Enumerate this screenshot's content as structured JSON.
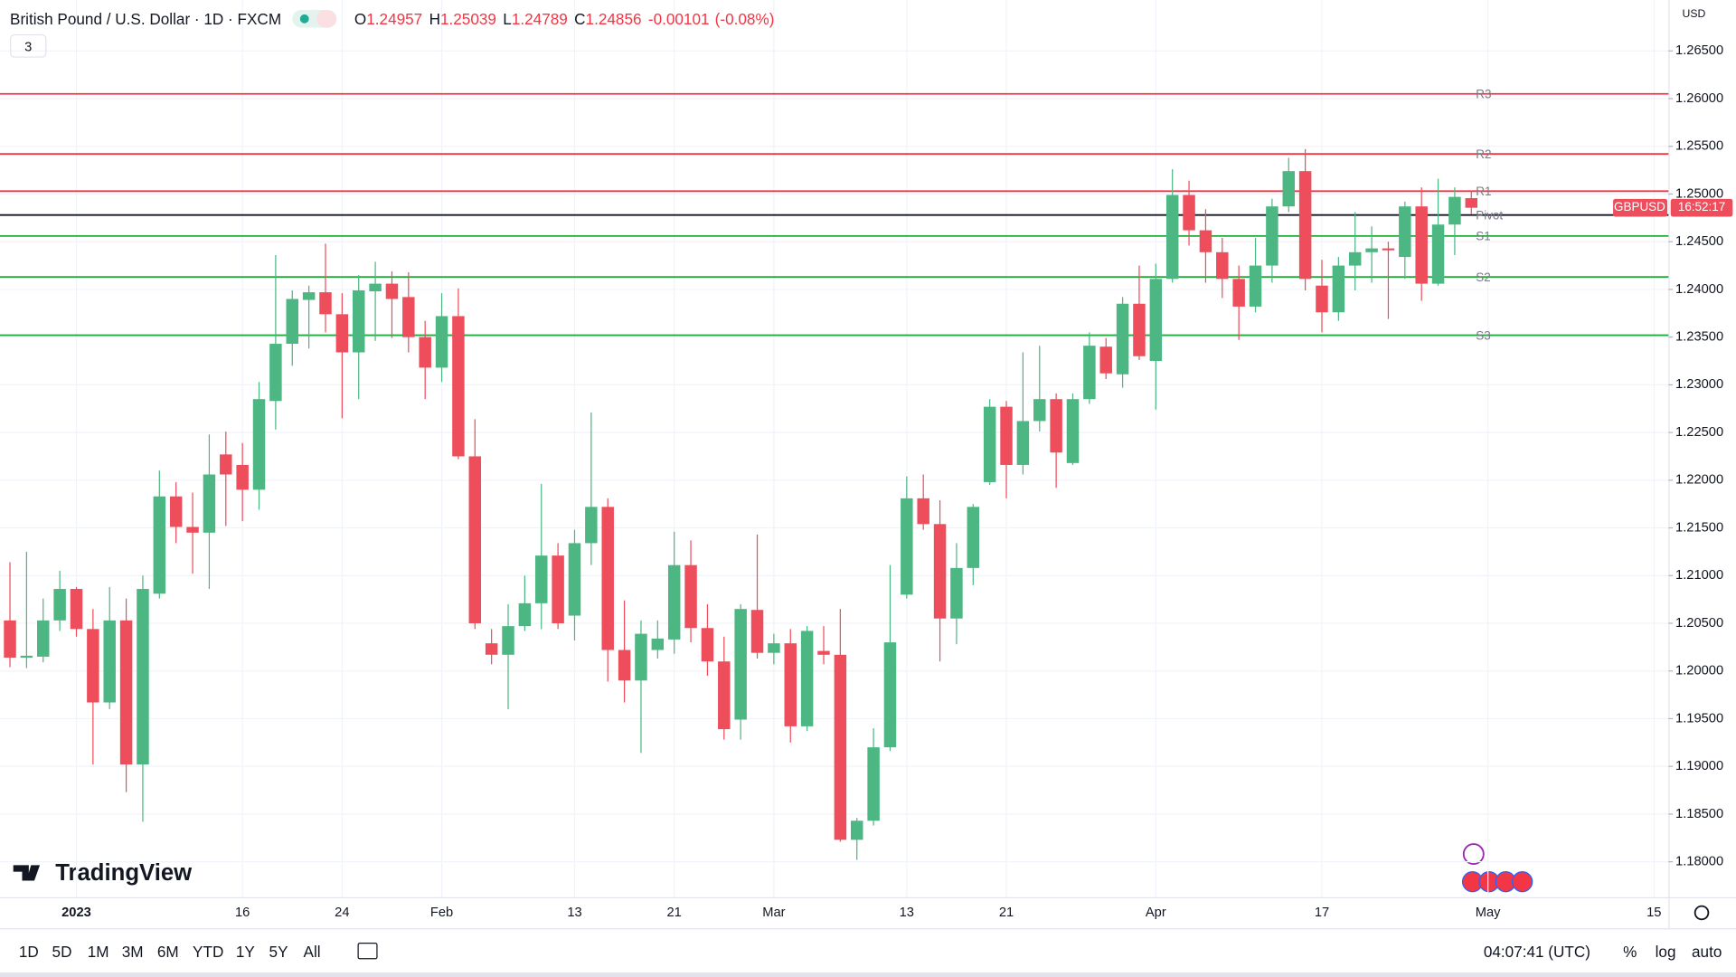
{
  "header": {
    "title": "British Pound / U.S. Dollar · 1D · FXCM",
    "indicator_count": 3,
    "ohlc_labels": [
      "O",
      "H",
      "L",
      "C"
    ],
    "change": "-0.00101",
    "change_pct": "(-0.08%)"
  },
  "toolbar": {
    "ranges": [
      "1D",
      "5D",
      "1M",
      "3M",
      "6M",
      "YTD",
      "1Y",
      "5Y",
      "All"
    ],
    "clock": "04:07:41 (UTC)",
    "options": [
      "%",
      "log",
      "auto"
    ]
  },
  "logo": "TradingView",
  "chart_data": {
    "type": "candlestick",
    "currency": "USD",
    "symbol": "GBPUSD",
    "countdown": "16:52:17",
    "up_color": "#4cb782",
    "down_color": "#ee4d5c",
    "open": [
      1.2053,
      1.2014,
      1.2015,
      1.2053,
      1.2086,
      1.2044,
      1.1967,
      1.2053,
      1.1902,
      1.2081,
      1.2183,
      1.2151,
      1.2145,
      1.2227,
      1.2216,
      1.219,
      1.2283,
      1.2343,
      1.2389,
      1.2397,
      1.2374,
      1.2334,
      1.2398,
      1.2406,
      1.2392,
      1.235,
      1.2318,
      1.2372,
      1.2225,
      1.2029,
      1.2017,
      1.2047,
      1.2071,
      1.2121,
      1.2058,
      1.2134,
      1.2172,
      1.2022,
      1.199,
      1.2022,
      1.2033,
      1.2111,
      1.2045,
      1.201,
      1.1949,
      1.2064,
      1.2019,
      1.2029,
      1.1942,
      1.2021,
      1.2017,
      1.1823,
      1.1843,
      1.192,
      1.208,
      1.2181,
      1.2154,
      1.2055,
      1.2108,
      1.2198,
      1.2277,
      1.2216,
      1.2262,
      1.2285,
      1.2218,
      1.2285,
      1.234,
      1.2311,
      1.2385,
      1.2325,
      1.2411,
      1.2499,
      1.2462,
      1.2439,
      1.2411,
      1.2382,
      1.2425,
      1.2487,
      1.2524,
      1.2404,
      1.2376,
      1.2425,
      1.2439,
      1.2443,
      1.2434,
      1.2487,
      1.2406,
      1.2468,
      1.24957
    ],
    "high": [
      1.2114,
      1.2125,
      1.2076,
      1.2105,
      1.2088,
      1.2065,
      1.2088,
      1.2076,
      1.21,
      1.221,
      1.2198,
      1.2187,
      1.2248,
      1.2251,
      1.2239,
      1.2303,
      1.2436,
      1.2399,
      1.2404,
      1.2448,
      1.2396,
      1.2415,
      1.2429,
      1.2419,
      1.2418,
      1.2367,
      1.2396,
      1.2401,
      1.2264,
      1.2044,
      1.207,
      1.21,
      1.2196,
      1.2134,
      1.2148,
      1.2271,
      1.2181,
      1.2074,
      1.2053,
      1.2053,
      1.2146,
      1.2137,
      1.207,
      1.2036,
      1.207,
      1.2143,
      1.2039,
      1.2044,
      1.2047,
      1.2047,
      1.2065,
      1.1846,
      1.194,
      1.2111,
      1.2204,
      1.2206,
      1.2179,
      1.2134,
      1.2175,
      1.2285,
      1.2283,
      1.2334,
      1.2341,
      1.2291,
      1.2291,
      1.2355,
      1.2349,
      1.2392,
      1.2425,
      1.2427,
      1.2526,
      1.2514,
      1.2484,
      1.2454,
      1.2425,
      1.2454,
      1.2495,
      1.2538,
      1.2547,
      1.2431,
      1.2434,
      1.2481,
      1.2466,
      1.245,
      1.2492,
      1.2507,
      1.2516,
      1.2507,
      1.25039
    ],
    "low": [
      1.2004,
      1.2003,
      1.2009,
      1.2042,
      1.2036,
      1.1902,
      1.196,
      1.1873,
      1.1842,
      1.2076,
      1.2134,
      1.2102,
      1.2086,
      1.2152,
      1.2157,
      1.2169,
      1.2253,
      1.232,
      1.2338,
      1.2355,
      1.2265,
      1.2285,
      1.2346,
      1.2349,
      1.2334,
      1.2285,
      1.2303,
      1.2222,
      1.2044,
      1.2007,
      1.196,
      1.2042,
      1.2044,
      1.2044,
      1.2032,
      1.2111,
      1.1989,
      1.1967,
      1.1914,
      1.2013,
      1.2018,
      1.203,
      1.1995,
      1.1928,
      1.1928,
      1.2013,
      1.2007,
      1.1925,
      1.1937,
      1.2007,
      1.1821,
      1.1802,
      1.1838,
      1.1916,
      1.2076,
      1.2148,
      1.201,
      1.2028,
      1.209,
      1.2195,
      1.2181,
      1.2206,
      1.2251,
      1.2192,
      1.2216,
      1.228,
      1.2306,
      1.2297,
      1.2326,
      1.2274,
      1.2407,
      1.2446,
      1.2407,
      1.2391,
      1.2347,
      1.2376,
      1.2407,
      1.2481,
      1.2399,
      1.2355,
      1.2367,
      1.2399,
      1.2407,
      1.2369,
      1.2411,
      1.2388,
      1.2404,
      1.2436,
      1.24789
    ],
    "close": [
      1.2014,
      1.2016,
      1.2053,
      1.2086,
      1.2044,
      1.1967,
      1.2053,
      1.1902,
      1.2086,
      1.2183,
      1.2151,
      1.2145,
      1.2206,
      1.2206,
      1.219,
      1.2285,
      1.2343,
      1.239,
      1.2397,
      1.2374,
      1.2334,
      1.2399,
      1.2406,
      1.239,
      1.235,
      1.2318,
      1.2372,
      1.2225,
      1.205,
      1.2017,
      1.2047,
      1.2071,
      1.2121,
      1.205,
      1.2134,
      1.2172,
      1.2022,
      1.199,
      1.2039,
      1.2034,
      1.2111,
      1.2045,
      1.201,
      1.1939,
      1.2065,
      1.2019,
      1.2029,
      1.1942,
      1.2042,
      1.2017,
      1.1823,
      1.1843,
      1.192,
      1.203,
      1.2181,
      1.2154,
      1.2055,
      1.2108,
      1.2172,
      1.2277,
      1.2216,
      1.2262,
      1.2285,
      1.2229,
      1.2285,
      1.2341,
      1.2312,
      1.2385,
      1.233,
      1.2411,
      1.2499,
      1.2462,
      1.2439,
      1.2411,
      1.2382,
      1.2425,
      1.2487,
      1.2524,
      1.2411,
      1.2376,
      1.2425,
      1.2439,
      1.2443,
      1.2441,
      1.2487,
      1.2406,
      1.2468,
      1.2497,
      1.24856
    ],
    "pivots": [
      {
        "name": "R3",
        "value": 1.2605,
        "color": "#f23645"
      },
      {
        "name": "R2",
        "value": 1.2542,
        "color": "#f23645"
      },
      {
        "name": "R1",
        "value": 1.2503,
        "color": "#f23645"
      },
      {
        "name": "Pivot",
        "value": 1.2478,
        "color": "#131722"
      },
      {
        "name": "S1",
        "value": 1.2456,
        "color": "#22ab3b"
      },
      {
        "name": "S2",
        "value": 1.2413,
        "color": "#22ab3b"
      },
      {
        "name": "S3",
        "value": 1.2352,
        "color": "#22ab3b"
      }
    ],
    "xlim": [
      -0.6,
      99.87
    ],
    "xticks": [
      {
        "value": 4,
        "label": "2023"
      },
      {
        "value": 14,
        "label": "16"
      },
      {
        "value": 20,
        "label": "24"
      },
      {
        "value": 26,
        "label": "Feb"
      },
      {
        "value": 34,
        "label": "13"
      },
      {
        "value": 40,
        "label": "21"
      },
      {
        "value": 46,
        "label": "Mar"
      },
      {
        "value": 54,
        "label": "13"
      },
      {
        "value": 60,
        "label": "21"
      },
      {
        "value": 69,
        "label": "Apr"
      },
      {
        "value": 79,
        "label": "17"
      },
      {
        "value": 89,
        "label": "May"
      },
      {
        "value": 99,
        "label": "15"
      }
    ],
    "ylim": [
      1.17628,
      1.27034
    ],
    "yticks": [
      {
        "value": 1.18,
        "label": "1.18000"
      },
      {
        "value": 1.185,
        "label": "1.18500"
      },
      {
        "value": 1.19,
        "label": "1.19000"
      },
      {
        "value": 1.195,
        "label": "1.19500"
      },
      {
        "value": 1.2,
        "label": "1.20000"
      },
      {
        "value": 1.205,
        "label": "1.20500"
      },
      {
        "value": 1.21,
        "label": "1.21000"
      },
      {
        "value": 1.215,
        "label": "1.21500"
      },
      {
        "value": 1.22,
        "label": "1.22000"
      },
      {
        "value": 1.225,
        "label": "1.22500"
      },
      {
        "value": 1.23,
        "label": "1.23000"
      },
      {
        "value": 1.235,
        "label": "1.23500"
      },
      {
        "value": 1.24,
        "label": "1.24000"
      },
      {
        "value": 1.245,
        "label": "1.24500"
      },
      {
        "value": 1.25,
        "label": "1.25000"
      },
      {
        "value": 1.255,
        "label": "1.25500"
      },
      {
        "value": 1.26,
        "label": "1.26000"
      },
      {
        "value": 1.265,
        "label": "1.26500"
      }
    ],
    "grid": true
  }
}
